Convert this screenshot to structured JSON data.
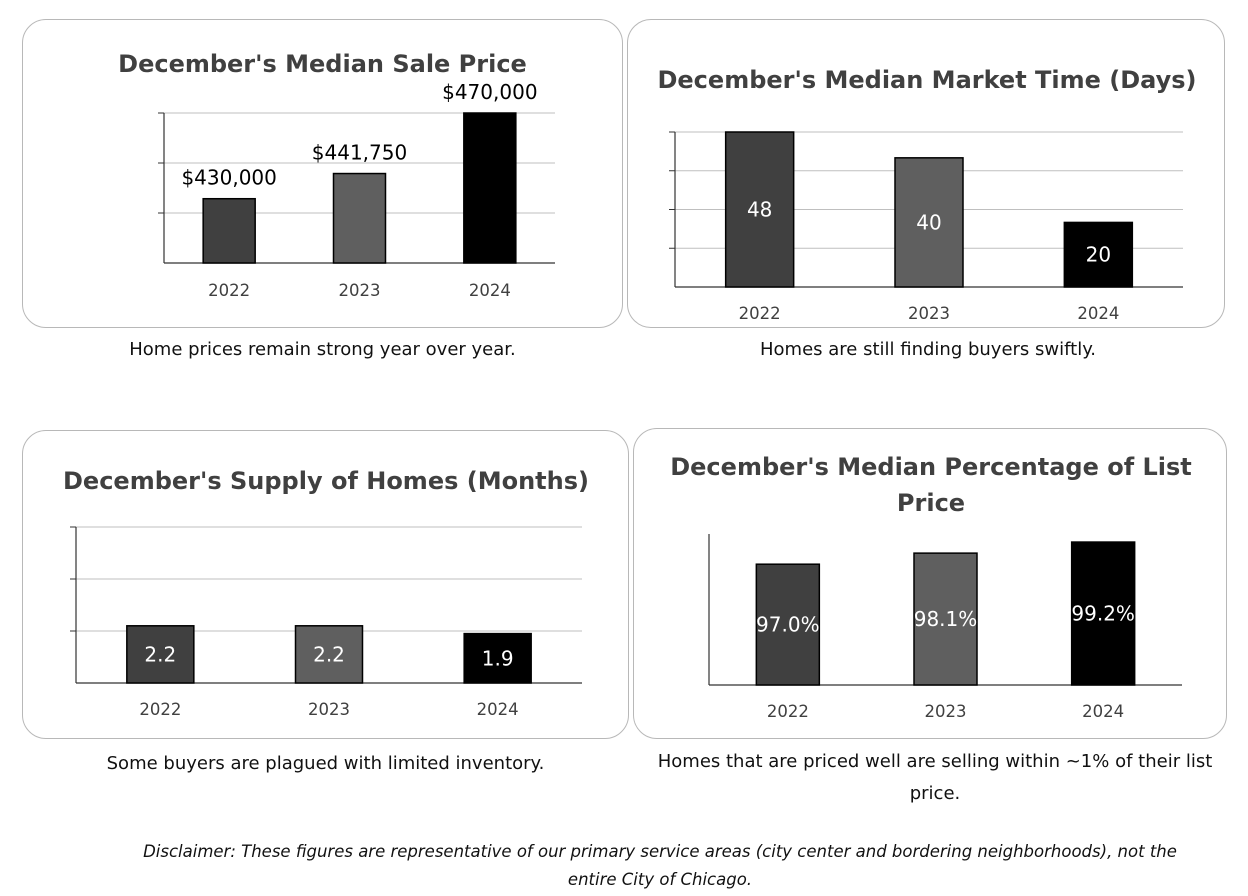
{
  "chart_data": [
    {
      "type": "bar",
      "title": "December's Median Sale Price",
      "categories": [
        "2022",
        "2023",
        "2024"
      ],
      "values": [
        430000,
        441750,
        470000
      ],
      "value_labels": [
        "$430,000",
        "$441,750",
        "$470,000"
      ],
      "label_position": "above",
      "ylim": [
        400000,
        470000
      ],
      "grid": true,
      "colors": [
        "#404040",
        "#5f5f5f",
        "#000000"
      ]
    },
    {
      "type": "bar",
      "title": "December's Median Market Time (Days)",
      "categories": [
        "2022",
        "2023",
        "2024"
      ],
      "values": [
        48,
        40,
        20
      ],
      "value_labels": [
        "48",
        "40",
        "20"
      ],
      "label_position": "inside",
      "ylim": [
        0,
        48
      ],
      "grid": true,
      "colors": [
        "#404040",
        "#5f5f5f",
        "#000000"
      ]
    },
    {
      "type": "bar",
      "title": "December's Supply of Homes (Months)",
      "categories": [
        "2022",
        "2023",
        "2024"
      ],
      "values": [
        2.2,
        2.2,
        1.9
      ],
      "value_labels": [
        "2.2",
        "2.2",
        "1.9"
      ],
      "label_position": "inside",
      "ylim": [
        0,
        6
      ],
      "grid": true,
      "colors": [
        "#404040",
        "#5f5f5f",
        "#000000"
      ]
    },
    {
      "type": "bar",
      "title": "December's Median Percentage of List Price",
      "categories": [
        "2022",
        "2023",
        "2024"
      ],
      "values": [
        97.0,
        98.1,
        99.2
      ],
      "value_labels": [
        "97.0%",
        "98.1%",
        "99.2%"
      ],
      "label_position": "inside",
      "ylim": [
        85,
        100
      ],
      "grid": false,
      "colors": [
        "#404040",
        "#5f5f5f",
        "#000000"
      ]
    }
  ],
  "captions": [
    "Home prices remain strong year over year.",
    "Homes are still finding buyers swiftly.",
    "Some buyers are plagued with limited inventory.",
    "Homes that are priced well are selling within ~1% of their list price."
  ],
  "disclaimer": "Disclaimer: These figures are representative of our primary service areas (city center and bordering neighborhoods), not the entire City of Chicago."
}
